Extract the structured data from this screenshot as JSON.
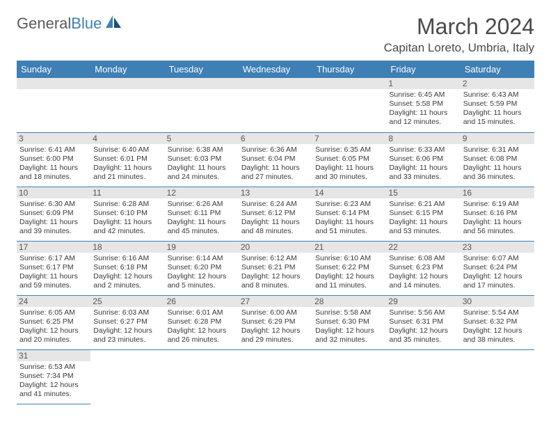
{
  "logo": {
    "part1": "General",
    "part2": "Blue"
  },
  "title": "March 2024",
  "location": "Capitan Loreto, Umbria, Italy",
  "colors": {
    "header_bg": "#3e7fb5",
    "daynum_bg": "#e6e6e6",
    "rule": "#3e7fb5"
  },
  "daysOfWeek": [
    "Sunday",
    "Monday",
    "Tuesday",
    "Wednesday",
    "Thursday",
    "Friday",
    "Saturday"
  ],
  "grid": [
    [
      null,
      null,
      null,
      null,
      null,
      {
        "n": "1",
        "sr": "Sunrise: 6:45 AM",
        "ss": "Sunset: 5:58 PM",
        "dl1": "Daylight: 11 hours",
        "dl2": "and 12 minutes."
      },
      {
        "n": "2",
        "sr": "Sunrise: 6:43 AM",
        "ss": "Sunset: 5:59 PM",
        "dl1": "Daylight: 11 hours",
        "dl2": "and 15 minutes."
      }
    ],
    [
      {
        "n": "3",
        "sr": "Sunrise: 6:41 AM",
        "ss": "Sunset: 6:00 PM",
        "dl1": "Daylight: 11 hours",
        "dl2": "and 18 minutes."
      },
      {
        "n": "4",
        "sr": "Sunrise: 6:40 AM",
        "ss": "Sunset: 6:01 PM",
        "dl1": "Daylight: 11 hours",
        "dl2": "and 21 minutes."
      },
      {
        "n": "5",
        "sr": "Sunrise: 6:38 AM",
        "ss": "Sunset: 6:03 PM",
        "dl1": "Daylight: 11 hours",
        "dl2": "and 24 minutes."
      },
      {
        "n": "6",
        "sr": "Sunrise: 6:36 AM",
        "ss": "Sunset: 6:04 PM",
        "dl1": "Daylight: 11 hours",
        "dl2": "and 27 minutes."
      },
      {
        "n": "7",
        "sr": "Sunrise: 6:35 AM",
        "ss": "Sunset: 6:05 PM",
        "dl1": "Daylight: 11 hours",
        "dl2": "and 30 minutes."
      },
      {
        "n": "8",
        "sr": "Sunrise: 6:33 AM",
        "ss": "Sunset: 6:06 PM",
        "dl1": "Daylight: 11 hours",
        "dl2": "and 33 minutes."
      },
      {
        "n": "9",
        "sr": "Sunrise: 6:31 AM",
        "ss": "Sunset: 6:08 PM",
        "dl1": "Daylight: 11 hours",
        "dl2": "and 36 minutes."
      }
    ],
    [
      {
        "n": "10",
        "sr": "Sunrise: 6:30 AM",
        "ss": "Sunset: 6:09 PM",
        "dl1": "Daylight: 11 hours",
        "dl2": "and 39 minutes."
      },
      {
        "n": "11",
        "sr": "Sunrise: 6:28 AM",
        "ss": "Sunset: 6:10 PM",
        "dl1": "Daylight: 11 hours",
        "dl2": "and 42 minutes."
      },
      {
        "n": "12",
        "sr": "Sunrise: 6:26 AM",
        "ss": "Sunset: 6:11 PM",
        "dl1": "Daylight: 11 hours",
        "dl2": "and 45 minutes."
      },
      {
        "n": "13",
        "sr": "Sunrise: 6:24 AM",
        "ss": "Sunset: 6:12 PM",
        "dl1": "Daylight: 11 hours",
        "dl2": "and 48 minutes."
      },
      {
        "n": "14",
        "sr": "Sunrise: 6:23 AM",
        "ss": "Sunset: 6:14 PM",
        "dl1": "Daylight: 11 hours",
        "dl2": "and 51 minutes."
      },
      {
        "n": "15",
        "sr": "Sunrise: 6:21 AM",
        "ss": "Sunset: 6:15 PM",
        "dl1": "Daylight: 11 hours",
        "dl2": "and 53 minutes."
      },
      {
        "n": "16",
        "sr": "Sunrise: 6:19 AM",
        "ss": "Sunset: 6:16 PM",
        "dl1": "Daylight: 11 hours",
        "dl2": "and 56 minutes."
      }
    ],
    [
      {
        "n": "17",
        "sr": "Sunrise: 6:17 AM",
        "ss": "Sunset: 6:17 PM",
        "dl1": "Daylight: 11 hours",
        "dl2": "and 59 minutes."
      },
      {
        "n": "18",
        "sr": "Sunrise: 6:16 AM",
        "ss": "Sunset: 6:18 PM",
        "dl1": "Daylight: 12 hours",
        "dl2": "and 2 minutes."
      },
      {
        "n": "19",
        "sr": "Sunrise: 6:14 AM",
        "ss": "Sunset: 6:20 PM",
        "dl1": "Daylight: 12 hours",
        "dl2": "and 5 minutes."
      },
      {
        "n": "20",
        "sr": "Sunrise: 6:12 AM",
        "ss": "Sunset: 6:21 PM",
        "dl1": "Daylight: 12 hours",
        "dl2": "and 8 minutes."
      },
      {
        "n": "21",
        "sr": "Sunrise: 6:10 AM",
        "ss": "Sunset: 6:22 PM",
        "dl1": "Daylight: 12 hours",
        "dl2": "and 11 minutes."
      },
      {
        "n": "22",
        "sr": "Sunrise: 6:08 AM",
        "ss": "Sunset: 6:23 PM",
        "dl1": "Daylight: 12 hours",
        "dl2": "and 14 minutes."
      },
      {
        "n": "23",
        "sr": "Sunrise: 6:07 AM",
        "ss": "Sunset: 6:24 PM",
        "dl1": "Daylight: 12 hours",
        "dl2": "and 17 minutes."
      }
    ],
    [
      {
        "n": "24",
        "sr": "Sunrise: 6:05 AM",
        "ss": "Sunset: 6:25 PM",
        "dl1": "Daylight: 12 hours",
        "dl2": "and 20 minutes."
      },
      {
        "n": "25",
        "sr": "Sunrise: 6:03 AM",
        "ss": "Sunset: 6:27 PM",
        "dl1": "Daylight: 12 hours",
        "dl2": "and 23 minutes."
      },
      {
        "n": "26",
        "sr": "Sunrise: 6:01 AM",
        "ss": "Sunset: 6:28 PM",
        "dl1": "Daylight: 12 hours",
        "dl2": "and 26 minutes."
      },
      {
        "n": "27",
        "sr": "Sunrise: 6:00 AM",
        "ss": "Sunset: 6:29 PM",
        "dl1": "Daylight: 12 hours",
        "dl2": "and 29 minutes."
      },
      {
        "n": "28",
        "sr": "Sunrise: 5:58 AM",
        "ss": "Sunset: 6:30 PM",
        "dl1": "Daylight: 12 hours",
        "dl2": "and 32 minutes."
      },
      {
        "n": "29",
        "sr": "Sunrise: 5:56 AM",
        "ss": "Sunset: 6:31 PM",
        "dl1": "Daylight: 12 hours",
        "dl2": "and 35 minutes."
      },
      {
        "n": "30",
        "sr": "Sunrise: 5:54 AM",
        "ss": "Sunset: 6:32 PM",
        "dl1": "Daylight: 12 hours",
        "dl2": "and 38 minutes."
      }
    ],
    [
      {
        "n": "31",
        "sr": "Sunrise: 6:53 AM",
        "ss": "Sunset: 7:34 PM",
        "dl1": "Daylight: 12 hours",
        "dl2": "and 41 minutes."
      },
      null,
      null,
      null,
      null,
      null,
      null
    ]
  ]
}
